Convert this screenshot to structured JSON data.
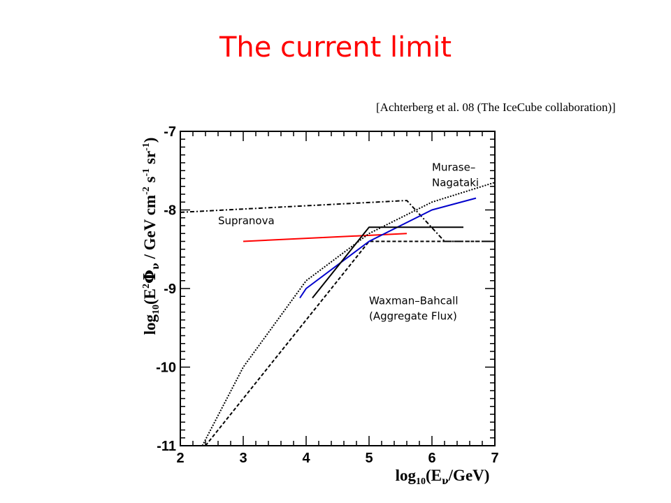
{
  "slide": {
    "title": "The current limit",
    "citation": "[Achterberg et al. 08 (The IceCube collaboration)]"
  },
  "chart_data": {
    "type": "line",
    "xlim": [
      2,
      7
    ],
    "ylim": [
      -11,
      -7
    ],
    "xticks": [
      "2",
      "3",
      "4",
      "5",
      "6",
      "7"
    ],
    "yticks": [
      "-7",
      "-8",
      "-9",
      "-10",
      "-11"
    ],
    "series": [
      {
        "name": "Supranova",
        "color": "#ff0000",
        "style": "solid",
        "x": [
          3.0,
          5.6
        ],
        "y": [
          -8.4,
          -8.3
        ]
      },
      {
        "name": "Murase–Nagataki",
        "style": "dashdot",
        "color": "#000000",
        "x": [
          2.0,
          5.6,
          6.2,
          7.0
        ],
        "y": [
          -8.03,
          -7.88,
          -8.4,
          -8.4
        ]
      },
      {
        "name": "Waxman–Bahcall (Aggregate Flux)",
        "style": "dashed",
        "color": "#000000",
        "x": [
          2.4,
          5.0,
          7.0
        ],
        "y": [
          -11.0,
          -8.4,
          -8.4
        ]
      },
      {
        "name": "",
        "style": "dotted",
        "color": "#000000",
        "x": [
          2.35,
          3.0,
          4.0,
          5.0,
          6.0,
          7.0
        ],
        "y": [
          -11.0,
          -10.0,
          -8.9,
          -8.3,
          -7.9,
          -7.65
        ]
      },
      {
        "name": "",
        "style": "solid",
        "color": "#0000cc",
        "x": [
          3.9,
          4.0,
          5.0,
          6.0,
          6.7
        ],
        "y": [
          -9.12,
          -9.0,
          -8.4,
          -8.0,
          -7.85
        ]
      },
      {
        "name": "",
        "style": "solid",
        "color": "#000000",
        "x": [
          4.1,
          5.0,
          6.5
        ],
        "y": [
          -9.12,
          -8.22,
          -8.22
        ]
      }
    ],
    "annotations": [
      {
        "text1": "Murase–",
        "text2": "Nagataki",
        "x": 6.0,
        "y": -7.5
      },
      {
        "text1": "Supranova",
        "x": 2.6,
        "y": -8.18
      },
      {
        "text1": "Waxman–Bahcall",
        "text2": "(Aggregate Flux)",
        "x": 5.0,
        "y": -9.2
      }
    ]
  }
}
